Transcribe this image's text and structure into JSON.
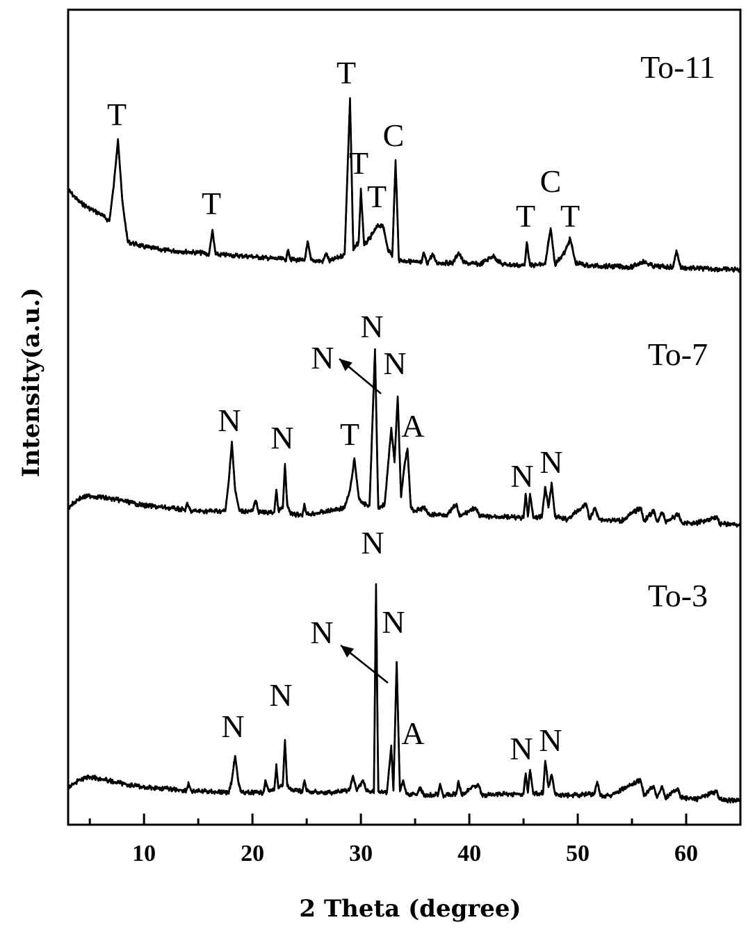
{
  "chart_data": {
    "type": "line",
    "xlabel": "2 Theta (degree)",
    "ylabel": "Intensity(a.u.)",
    "xlim": [
      3,
      65
    ],
    "x_ticks": [
      10,
      20,
      30,
      40,
      50,
      60
    ],
    "x_minor_ticks": [
      5,
      15,
      25,
      35,
      45,
      55
    ],
    "y_ticks": "none",
    "grid": false,
    "legend": "none",
    "series": [
      {
        "name": "To-11",
        "baseline": 0,
        "points": [
          [
            3,
            115
          ],
          [
            4,
            98
          ],
          [
            5,
            88
          ],
          [
            6,
            80
          ],
          [
            6.8,
            70
          ],
          [
            7.2,
            120
          ],
          [
            7.6,
            188
          ],
          [
            8.0,
            98
          ],
          [
            8.5,
            40
          ],
          [
            9,
            38
          ],
          [
            10,
            33
          ],
          [
            12,
            28
          ],
          [
            14,
            26
          ],
          [
            15.5,
            24
          ],
          [
            16.0,
            22
          ],
          [
            16.3,
            57
          ],
          [
            16.6,
            22
          ],
          [
            18,
            21
          ],
          [
            20,
            19
          ],
          [
            22,
            16
          ],
          [
            23.1,
            15
          ],
          [
            23.3,
            29
          ],
          [
            23.5,
            15
          ],
          [
            24.8,
            13
          ],
          [
            25.1,
            40
          ],
          [
            25.4,
            14
          ],
          [
            26.5,
            12
          ],
          [
            26.8,
            24
          ],
          [
            27.1,
            12
          ],
          [
            28.5,
            22
          ],
          [
            29.0,
            247
          ],
          [
            29.3,
            28
          ],
          [
            29.8,
            40
          ],
          [
            30.0,
            115
          ],
          [
            30.3,
            35
          ],
          [
            30.8,
            45
          ],
          [
            31.5,
            62
          ],
          [
            32.0,
            65
          ],
          [
            32.5,
            30
          ],
          [
            32.9,
            20
          ],
          [
            33.2,
            158
          ],
          [
            33.5,
            14
          ],
          [
            34.5,
            12
          ],
          [
            35.6,
            10
          ],
          [
            35.8,
            25
          ],
          [
            36.1,
            9
          ],
          [
            36.6,
            22
          ],
          [
            37,
            10
          ],
          [
            38.5,
            10
          ],
          [
            39.0,
            25
          ],
          [
            39.5,
            10
          ],
          [
            41,
            8
          ],
          [
            42.2,
            20
          ],
          [
            43,
            8
          ],
          [
            45.1,
            6
          ],
          [
            45.3,
            40
          ],
          [
            45.6,
            6
          ],
          [
            47.0,
            8
          ],
          [
            47.5,
            60
          ],
          [
            47.9,
            8
          ],
          [
            48.8,
            25
          ],
          [
            49.3,
            45
          ],
          [
            49.8,
            10
          ],
          [
            51,
            6
          ],
          [
            53,
            5
          ],
          [
            55,
            4
          ],
          [
            56,
            12
          ],
          [
            57,
            5
          ],
          [
            58.8,
            4
          ],
          [
            59.1,
            28
          ],
          [
            59.5,
            3
          ],
          [
            61,
            2
          ],
          [
            63,
            1
          ],
          [
            65,
            0
          ]
        ],
        "peak_labels": [
          {
            "label": "T",
            "x": 7.6
          },
          {
            "label": "T",
            "x": 16.3
          },
          {
            "label": "T",
            "x": 29.0
          },
          {
            "label": "T",
            "x": 30.0
          },
          {
            "label": "T",
            "x": 31.8
          },
          {
            "label": "C",
            "x": 33.2
          },
          {
            "label": "T",
            "x": 45.3
          },
          {
            "label": "C",
            "x": 47.5
          },
          {
            "label": "T",
            "x": 49.3
          }
        ]
      },
      {
        "name": "To-7",
        "baseline": 0,
        "points": [
          [
            3,
            25
          ],
          [
            4,
            38
          ],
          [
            5,
            42
          ],
          [
            6,
            40
          ],
          [
            8,
            35
          ],
          [
            10,
            28
          ],
          [
            12,
            25
          ],
          [
            13.8,
            22
          ],
          [
            14.0,
            30
          ],
          [
            14.3,
            20
          ],
          [
            16,
            20
          ],
          [
            17.5,
            20
          ],
          [
            17.8,
            60
          ],
          [
            18.1,
            120
          ],
          [
            18.4,
            50
          ],
          [
            18.8,
            20
          ],
          [
            20,
            20
          ],
          [
            20.3,
            35
          ],
          [
            20.6,
            18
          ],
          [
            22.0,
            18
          ],
          [
            22.2,
            50
          ],
          [
            22.4,
            20
          ],
          [
            22.8,
            25
          ],
          [
            23.0,
            88
          ],
          [
            23.2,
            28
          ],
          [
            23.6,
            15
          ],
          [
            24.6,
            15
          ],
          [
            24.8,
            30
          ],
          [
            25.0,
            15
          ],
          [
            27,
            20
          ],
          [
            28.5,
            25
          ],
          [
            29.0,
            50
          ],
          [
            29.4,
            95
          ],
          [
            29.8,
            40
          ],
          [
            30.2,
            30
          ],
          [
            30.8,
            28
          ],
          [
            31.3,
            253
          ],
          [
            31.6,
            25
          ],
          [
            32.2,
            30
          ],
          [
            32.8,
            140
          ],
          [
            33.1,
            90
          ],
          [
            33.4,
            185
          ],
          [
            33.7,
            40
          ],
          [
            34.0,
            85
          ],
          [
            34.3,
            110
          ],
          [
            34.6,
            25
          ],
          [
            35,
            20
          ],
          [
            35.9,
            25
          ],
          [
            36.2,
            15
          ],
          [
            38,
            15
          ],
          [
            38.8,
            30
          ],
          [
            39.1,
            12
          ],
          [
            40.5,
            25
          ],
          [
            41,
            12
          ],
          [
            43,
            12
          ],
          [
            45.0,
            10
          ],
          [
            45.2,
            45
          ],
          [
            45.4,
            12
          ],
          [
            45.6,
            45
          ],
          [
            45.9,
            10
          ],
          [
            46.7,
            12
          ],
          [
            47.0,
            55
          ],
          [
            47.3,
            25
          ],
          [
            47.6,
            60
          ],
          [
            47.9,
            12
          ],
          [
            49,
            8
          ],
          [
            50.8,
            30
          ],
          [
            51.1,
            8
          ],
          [
            51.6,
            25
          ],
          [
            52,
            8
          ],
          [
            54,
            6
          ],
          [
            55.8,
            25
          ],
          [
            56.1,
            6
          ],
          [
            57.0,
            20
          ],
          [
            57.3,
            5
          ],
          [
            57.8,
            18
          ],
          [
            58.1,
            5
          ],
          [
            59.3,
            15
          ],
          [
            59.6,
            3
          ],
          [
            61,
            3
          ],
          [
            62.8,
            12
          ],
          [
            63.1,
            2
          ],
          [
            65,
            0
          ]
        ],
        "peak_labels": [
          {
            "label": "N",
            "x": 18.1
          },
          {
            "label": "N",
            "x": 23.0
          },
          {
            "label": "T",
            "x": 29.4
          },
          {
            "label": "N",
            "x": 31.3
          },
          {
            "label": "N",
            "x": 32.8
          },
          {
            "label": "N",
            "x": 33.4
          },
          {
            "label": "A",
            "x": 34.3
          },
          {
            "label": "N",
            "x": 45.4
          },
          {
            "label": "N",
            "x": 47.6
          }
        ]
      },
      {
        "name": "To-3",
        "baseline": 0,
        "points": [
          [
            3,
            20
          ],
          [
            4,
            30
          ],
          [
            5,
            35
          ],
          [
            6,
            32
          ],
          [
            8,
            25
          ],
          [
            10,
            20
          ],
          [
            12,
            18
          ],
          [
            13.9,
            15
          ],
          [
            14.1,
            25
          ],
          [
            14.4,
            14
          ],
          [
            16,
            14
          ],
          [
            17.8,
            12
          ],
          [
            18.1,
            30
          ],
          [
            18.4,
            65
          ],
          [
            18.7,
            28
          ],
          [
            19.0,
            12
          ],
          [
            21.0,
            12
          ],
          [
            21.2,
            30
          ],
          [
            21.5,
            14
          ],
          [
            22.0,
            15
          ],
          [
            22.2,
            50
          ],
          [
            22.4,
            18
          ],
          [
            22.8,
            25
          ],
          [
            23.0,
            88
          ],
          [
            23.2,
            22
          ],
          [
            23.6,
            15
          ],
          [
            24.6,
            14
          ],
          [
            24.8,
            30
          ],
          [
            25.0,
            14
          ],
          [
            27,
            12
          ],
          [
            28.9,
            15
          ],
          [
            29.3,
            35
          ],
          [
            29.6,
            15
          ],
          [
            30.2,
            30
          ],
          [
            30.5,
            14
          ],
          [
            31.2,
            14
          ],
          [
            31.4,
            312
          ],
          [
            31.6,
            14
          ],
          [
            32.4,
            12
          ],
          [
            32.8,
            80
          ],
          [
            33.0,
            15
          ],
          [
            33.3,
            200
          ],
          [
            33.6,
            14
          ],
          [
            33.9,
            30
          ],
          [
            34.2,
            10
          ],
          [
            35.2,
            10
          ],
          [
            35.5,
            20
          ],
          [
            35.8,
            8
          ],
          [
            37.1,
            10
          ],
          [
            37.3,
            25
          ],
          [
            37.6,
            8
          ],
          [
            38.8,
            10
          ],
          [
            39.0,
            28
          ],
          [
            39.3,
            8
          ],
          [
            40.4,
            22
          ],
          [
            40.9,
            22
          ],
          [
            41.2,
            8
          ],
          [
            43,
            10
          ],
          [
            45.0,
            10
          ],
          [
            45.2,
            40
          ],
          [
            45.4,
            12
          ],
          [
            45.6,
            45
          ],
          [
            45.9,
            10
          ],
          [
            46.8,
            12
          ],
          [
            47.0,
            58
          ],
          [
            47.3,
            20
          ],
          [
            47.6,
            38
          ],
          [
            47.9,
            10
          ],
          [
            49,
            8
          ],
          [
            51.5,
            10
          ],
          [
            51.8,
            28
          ],
          [
            52.1,
            8
          ],
          [
            53,
            8
          ],
          [
            55.8,
            30
          ],
          [
            56.1,
            8
          ],
          [
            57.0,
            22
          ],
          [
            57.3,
            6
          ],
          [
            57.8,
            20
          ],
          [
            58.1,
            5
          ],
          [
            59.2,
            18
          ],
          [
            59.5,
            5
          ],
          [
            61,
            3
          ],
          [
            62.8,
            14
          ],
          [
            63.1,
            2
          ],
          [
            65,
            0
          ]
        ],
        "peak_labels": [
          {
            "label": "N",
            "x": 18.4
          },
          {
            "label": "N",
            "x": 23.0
          },
          {
            "label": "N",
            "x": 31.4
          },
          {
            "label": "N",
            "x": 32.8
          },
          {
            "label": "N",
            "x": 33.3
          },
          {
            "label": "A",
            "x": 33.9
          },
          {
            "label": "N",
            "x": 45.4
          },
          {
            "label": "N",
            "x": 47.6
          }
        ]
      }
    ]
  }
}
